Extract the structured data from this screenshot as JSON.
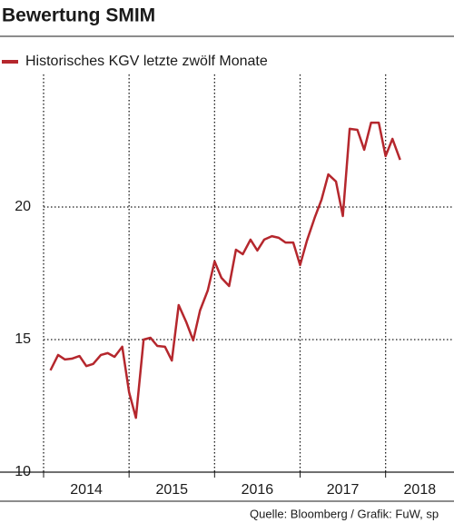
{
  "chart_data": {
    "type": "line",
    "title": "Bewertung SMIM",
    "source": "Quelle: Bloomberg / Grafik: FuW, sp",
    "x": [
      2014.08,
      2014.17,
      2014.25,
      2014.33,
      2014.42,
      2014.5,
      2014.58,
      2014.67,
      2014.75,
      2014.83,
      2014.92,
      2015.0,
      2015.08,
      2015.17,
      2015.25,
      2015.33,
      2015.42,
      2015.5,
      2015.58,
      2015.67,
      2015.75,
      2015.83,
      2015.92,
      2016.0,
      2016.08,
      2016.17,
      2016.25,
      2016.33,
      2016.42,
      2016.5,
      2016.58,
      2016.67,
      2016.75,
      2016.83,
      2016.92,
      2017.0,
      2017.08,
      2017.17,
      2017.25,
      2017.33,
      2017.42,
      2017.5,
      2017.58,
      2017.67,
      2017.75,
      2017.83,
      2017.92,
      2018.0,
      2018.08,
      2018.17
    ],
    "series": [
      {
        "name": "Historisches KGV letzte zwölf Monate",
        "color": "#b5272d",
        "values": [
          13.84,
          14.42,
          14.25,
          14.28,
          14.38,
          14.0,
          14.08,
          14.42,
          14.49,
          14.35,
          14.73,
          13.01,
          12.05,
          15.0,
          15.07,
          14.76,
          14.73,
          14.21,
          16.3,
          15.65,
          14.97,
          16.1,
          16.85,
          17.95,
          17.33,
          17.02,
          18.39,
          18.22,
          18.77,
          18.36,
          18.77,
          18.9,
          18.84,
          18.66,
          18.66,
          17.81,
          18.73,
          19.59,
          20.27,
          21.23,
          20.96,
          19.66,
          22.95,
          22.91,
          22.16,
          23.18,
          23.18,
          21.92,
          22.57,
          21.78
        ]
      }
    ],
    "xlim": [
      2014,
      2018.8
    ],
    "xticks": [
      2014,
      2015,
      2016,
      2017,
      2018
    ],
    "ylim": [
      10,
      25
    ],
    "yticks": [
      10,
      15,
      20
    ],
    "grid": true
  }
}
